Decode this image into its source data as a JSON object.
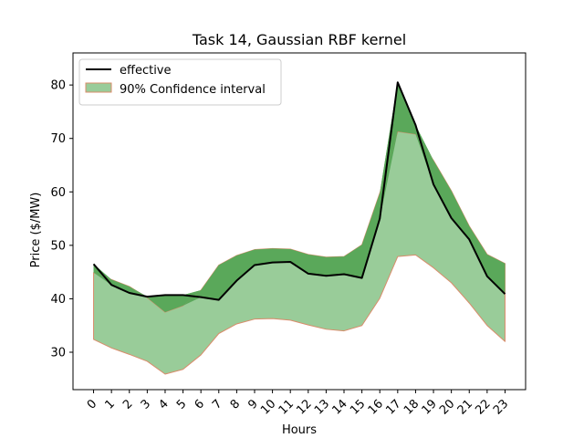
{
  "chart_data": {
    "type": "line",
    "title": "Task 14, Gaussian RBF kernel",
    "xlabel": "Hours",
    "ylabel": "Price ($/MW)",
    "x": [
      0,
      1,
      2,
      3,
      4,
      5,
      6,
      7,
      8,
      9,
      10,
      11,
      12,
      13,
      14,
      15,
      16,
      17,
      18,
      19,
      20,
      21,
      22,
      23
    ],
    "x_tick_labels": [
      "0",
      "1",
      "2",
      "3",
      "4",
      "5",
      "6",
      "7",
      "8",
      "9",
      "10",
      "11",
      "12",
      "13",
      "14",
      "15",
      "16",
      "17",
      "18",
      "19",
      "20",
      "21",
      "22",
      "23"
    ],
    "ylim": [
      23,
      86
    ],
    "yticks": [
      30,
      40,
      50,
      60,
      70,
      80
    ],
    "y_tick_labels": [
      "30",
      "40",
      "50",
      "60",
      "70",
      "80"
    ],
    "grid": false,
    "legend_position": "top-left",
    "series": [
      {
        "name": "effective",
        "kind": "line",
        "color": "#000000",
        "values": [
          46.5,
          42.6,
          41.1,
          40.4,
          40.7,
          40.7,
          40.3,
          39.8,
          43.4,
          46.3,
          46.8,
          46.9,
          44.7,
          44.3,
          44.6,
          43.9,
          55.0,
          80.5,
          72.5,
          61.4,
          55.1,
          51.1,
          44.2,
          40.9
        ]
      },
      {
        "name": "90% Confidence interval",
        "kind": "band",
        "fill_color": "#99cc99",
        "edge_color": "#d98c6b",
        "overshoot_color": "#5aa85a",
        "upper": [
          44.9,
          43.6,
          42.3,
          40.2,
          37.5,
          38.7,
          41.6,
          46.3,
          48.1,
          49.2,
          49.4,
          49.3,
          48.3,
          47.8,
          47.9,
          50.1,
          59.8,
          71.3,
          70.8,
          65.9,
          60.2,
          53.6,
          48.3,
          46.6
        ],
        "lower": [
          32.4,
          30.8,
          29.6,
          28.3,
          25.9,
          26.8,
          29.5,
          33.5,
          35.3,
          36.2,
          36.3,
          36.0,
          35.1,
          34.3,
          34.0,
          35.0,
          40.1,
          47.9,
          48.2,
          45.8,
          43.0,
          39.2,
          35.0,
          32.0
        ]
      }
    ]
  }
}
